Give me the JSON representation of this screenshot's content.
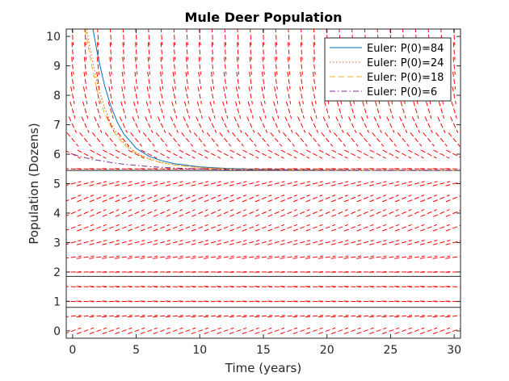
{
  "chart_data": {
    "type": "line",
    "title": "Mule Deer Population",
    "xlabel": "Time (years)",
    "ylabel": "Population (Dozens)",
    "xlim": [
      -0.5,
      30.5
    ],
    "ylim": [
      -0.25,
      10.25
    ],
    "x_ticks": [
      0,
      5,
      10,
      15,
      20,
      25,
      30
    ],
    "x_tick_labels": [
      "0",
      "5",
      "10",
      "15",
      "20",
      "25",
      "30"
    ],
    "y_ticks": [
      0,
      1,
      2,
      3,
      4,
      5,
      6,
      7,
      8,
      9,
      10
    ],
    "y_tick_labels": [
      "0",
      "1",
      "2",
      "3",
      "4",
      "5",
      "6",
      "7",
      "8",
      "9",
      "10"
    ],
    "grid": false,
    "legend_position": "top-right",
    "equilibrium_lines": [
      0.8,
      1.85,
      5.45
    ],
    "direction_field": {
      "color": "#ff0000",
      "x_step": 1,
      "y_step": 0.5,
      "style": "dashed"
    },
    "series": [
      {
        "name": "Euler: P(0)=84",
        "color": "#0072bd",
        "dash": "solid",
        "x": [
          1.6,
          2,
          2.5,
          3,
          3.5,
          4,
          5,
          6,
          7,
          8,
          10,
          12,
          15,
          20,
          25,
          30
        ],
        "y": [
          10.25,
          9.3,
          8.35,
          7.65,
          7.1,
          6.7,
          6.2,
          5.93,
          5.78,
          5.68,
          5.57,
          5.52,
          5.48,
          5.46,
          5.45,
          5.45
        ]
      },
      {
        "name": "Euler: P(0)=24",
        "color": "#d95319",
        "dash": "dotted",
        "x": [
          1.1,
          1.5,
          2,
          2.5,
          3,
          3.5,
          4,
          5,
          6,
          7,
          8,
          10,
          12,
          15,
          20,
          25,
          30
        ],
        "y": [
          10.25,
          9.3,
          8.3,
          7.6,
          7.05,
          6.7,
          6.4,
          6.05,
          5.85,
          5.72,
          5.64,
          5.55,
          5.51,
          5.47,
          5.46,
          5.45,
          5.45
        ]
      },
      {
        "name": "Euler: P(0)=18",
        "color": "#edb120",
        "dash": "dashed",
        "x": [
          1,
          1.5,
          2,
          2.5,
          3,
          3.5,
          4,
          5,
          6,
          7,
          8,
          10,
          12,
          15,
          20,
          25,
          30
        ],
        "y": [
          10.25,
          9.0,
          8.05,
          7.4,
          6.95,
          6.6,
          6.35,
          6.02,
          5.83,
          5.71,
          5.63,
          5.54,
          5.5,
          5.47,
          5.46,
          5.45,
          5.45
        ]
      },
      {
        "name": "Euler: P(0)=6",
        "color": "#7e2f8e",
        "dash": "dashdot",
        "x": [
          0,
          1,
          2,
          3,
          4,
          5,
          6,
          8,
          10,
          12,
          15,
          20,
          25,
          30
        ],
        "y": [
          6.0,
          5.88,
          5.79,
          5.72,
          5.66,
          5.62,
          5.58,
          5.53,
          5.5,
          5.48,
          5.46,
          5.45,
          5.45,
          5.45
        ]
      }
    ]
  }
}
